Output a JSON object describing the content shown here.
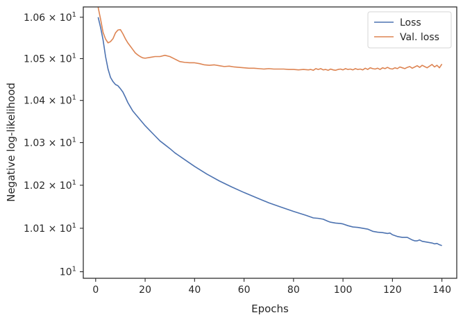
{
  "chart_data": {
    "type": "line",
    "title": "",
    "xlabel": "Epochs",
    "ylabel": "Negative log-likelihood",
    "y_scale": "log",
    "xlim": [
      -5,
      146
    ],
    "ylim": [
      9.985,
      10.625
    ],
    "grid": false,
    "legend_position": "top-right",
    "x_ticks": [
      {
        "value": 0,
        "label": "0"
      },
      {
        "value": 20,
        "label": "20"
      },
      {
        "value": 40,
        "label": "40"
      },
      {
        "value": 60,
        "label": "60"
      },
      {
        "value": 80,
        "label": "80"
      },
      {
        "value": 100,
        "label": "100"
      },
      {
        "value": 120,
        "label": "120"
      },
      {
        "value": 140,
        "label": "140"
      }
    ],
    "y_ticks": [
      {
        "value": 10.0,
        "base": "10",
        "exp": "1"
      },
      {
        "value": 10.1,
        "base": "1.01 × 10",
        "exp": "1"
      },
      {
        "value": 10.2,
        "base": "1.02 × 10",
        "exp": "1"
      },
      {
        "value": 10.3,
        "base": "1.03 × 10",
        "exp": "1"
      },
      {
        "value": 10.4,
        "base": "1.04 × 10",
        "exp": "1"
      },
      {
        "value": 10.5,
        "base": "1.05 × 10",
        "exp": "1"
      },
      {
        "value": 10.6,
        "base": "1.06 × 10",
        "exp": "1"
      }
    ],
    "series": [
      {
        "name": "Loss",
        "color": "#4c72b0",
        "points": [
          [
            1,
            10.6
          ],
          [
            2,
            10.575
          ],
          [
            3,
            10.545
          ],
          [
            4,
            10.505
          ],
          [
            5,
            10.475
          ],
          [
            6,
            10.455
          ],
          [
            7,
            10.445
          ],
          [
            8,
            10.438
          ],
          [
            9,
            10.435
          ],
          [
            10,
            10.428
          ],
          [
            11,
            10.42
          ],
          [
            12,
            10.408
          ],
          [
            13,
            10.395
          ],
          [
            14,
            10.385
          ],
          [
            15,
            10.375
          ],
          [
            16,
            10.368
          ],
          [
            17,
            10.361
          ],
          [
            18,
            10.354
          ],
          [
            19,
            10.347
          ],
          [
            20,
            10.34
          ],
          [
            22,
            10.328
          ],
          [
            24,
            10.316
          ],
          [
            26,
            10.304
          ],
          [
            28,
            10.295
          ],
          [
            30,
            10.286
          ],
          [
            32,
            10.276
          ],
          [
            35,
            10.264
          ],
          [
            38,
            10.252
          ],
          [
            40,
            10.244
          ],
          [
            45,
            10.226
          ],
          [
            50,
            10.21
          ],
          [
            55,
            10.196
          ],
          [
            60,
            10.183
          ],
          [
            65,
            10.171
          ],
          [
            70,
            10.159
          ],
          [
            75,
            10.149
          ],
          [
            80,
            10.139
          ],
          [
            85,
            10.13
          ],
          [
            88,
            10.124
          ],
          [
            90,
            10.123
          ],
          [
            92,
            10.121
          ],
          [
            94,
            10.116
          ],
          [
            95,
            10.114
          ],
          [
            97,
            10.112
          ],
          [
            99,
            10.111
          ],
          [
            100,
            10.11
          ],
          [
            102,
            10.106
          ],
          [
            104,
            10.103
          ],
          [
            106,
            10.102
          ],
          [
            108,
            10.1
          ],
          [
            110,
            10.098
          ],
          [
            112,
            10.093
          ],
          [
            114,
            10.091
          ],
          [
            116,
            10.09
          ],
          [
            118,
            10.088
          ],
          [
            119,
            10.089
          ],
          [
            120,
            10.085
          ],
          [
            122,
            10.081
          ],
          [
            124,
            10.079
          ],
          [
            126,
            10.079
          ],
          [
            128,
            10.073
          ],
          [
            129,
            10.071
          ],
          [
            130,
            10.071
          ],
          [
            131,
            10.073
          ],
          [
            132,
            10.07
          ],
          [
            134,
            10.068
          ],
          [
            136,
            10.066
          ],
          [
            137,
            10.064
          ],
          [
            138,
            10.065
          ],
          [
            139,
            10.062
          ],
          [
            140,
            10.06
          ]
        ]
      },
      {
        "name": "Val. loss",
        "color": "#dd8452",
        "points": [
          [
            1,
            10.624
          ],
          [
            2,
            10.595
          ],
          [
            3,
            10.563
          ],
          [
            4,
            10.547
          ],
          [
            5,
            10.538
          ],
          [
            6,
            10.541
          ],
          [
            7,
            10.548
          ],
          [
            8,
            10.562
          ],
          [
            9,
            10.569
          ],
          [
            10,
            10.57
          ],
          [
            11,
            10.56
          ],
          [
            12,
            10.548
          ],
          [
            13,
            10.538
          ],
          [
            14,
            10.53
          ],
          [
            15,
            10.522
          ],
          [
            16,
            10.514
          ],
          [
            17,
            10.509
          ],
          [
            18,
            10.505
          ],
          [
            19,
            10.502
          ],
          [
            20,
            10.501
          ],
          [
            22,
            10.503
          ],
          [
            24,
            10.505
          ],
          [
            26,
            10.505
          ],
          [
            28,
            10.508
          ],
          [
            30,
            10.505
          ],
          [
            32,
            10.499
          ],
          [
            34,
            10.493
          ],
          [
            36,
            10.491
          ],
          [
            38,
            10.49
          ],
          [
            40,
            10.49
          ],
          [
            42,
            10.488
          ],
          [
            44,
            10.485
          ],
          [
            46,
            10.484
          ],
          [
            48,
            10.485
          ],
          [
            50,
            10.483
          ],
          [
            52,
            10.481
          ],
          [
            54,
            10.482
          ],
          [
            56,
            10.48
          ],
          [
            58,
            10.479
          ],
          [
            60,
            10.478
          ],
          [
            62,
            10.477
          ],
          [
            64,
            10.477
          ],
          [
            66,
            10.476
          ],
          [
            68,
            10.475
          ],
          [
            70,
            10.476
          ],
          [
            72,
            10.475
          ],
          [
            74,
            10.475
          ],
          [
            76,
            10.475
          ],
          [
            78,
            10.474
          ],
          [
            80,
            10.474
          ],
          [
            82,
            10.473
          ],
          [
            84,
            10.474
          ],
          [
            86,
            10.473
          ],
          [
            87,
            10.474
          ],
          [
            88,
            10.472
          ],
          [
            89,
            10.476
          ],
          [
            90,
            10.474
          ],
          [
            91,
            10.476
          ],
          [
            92,
            10.473
          ],
          [
            93,
            10.474
          ],
          [
            94,
            10.472
          ],
          [
            95,
            10.475
          ],
          [
            96,
            10.473
          ],
          [
            97,
            10.472
          ],
          [
            98,
            10.474
          ],
          [
            99,
            10.475
          ],
          [
            100,
            10.473
          ],
          [
            101,
            10.476
          ],
          [
            102,
            10.474
          ],
          [
            103,
            10.475
          ],
          [
            104,
            10.473
          ],
          [
            105,
            10.476
          ],
          [
            106,
            10.474
          ],
          [
            107,
            10.475
          ],
          [
            108,
            10.473
          ],
          [
            109,
            10.477
          ],
          [
            110,
            10.474
          ],
          [
            111,
            10.478
          ],
          [
            112,
            10.476
          ],
          [
            113,
            10.475
          ],
          [
            114,
            10.477
          ],
          [
            115,
            10.474
          ],
          [
            116,
            10.478
          ],
          [
            117,
            10.476
          ],
          [
            118,
            10.479
          ],
          [
            119,
            10.476
          ],
          [
            120,
            10.475
          ],
          [
            121,
            10.478
          ],
          [
            122,
            10.476
          ],
          [
            123,
            10.48
          ],
          [
            124,
            10.478
          ],
          [
            125,
            10.476
          ],
          [
            126,
            10.479
          ],
          [
            127,
            10.481
          ],
          [
            128,
            10.477
          ],
          [
            129,
            10.48
          ],
          [
            130,
            10.483
          ],
          [
            131,
            10.479
          ],
          [
            132,
            10.484
          ],
          [
            133,
            10.481
          ],
          [
            134,
            10.478
          ],
          [
            135,
            10.482
          ],
          [
            136,
            10.486
          ],
          [
            137,
            10.48
          ],
          [
            138,
            10.484
          ],
          [
            139,
            10.478
          ],
          [
            140,
            10.487
          ]
        ]
      }
    ]
  }
}
